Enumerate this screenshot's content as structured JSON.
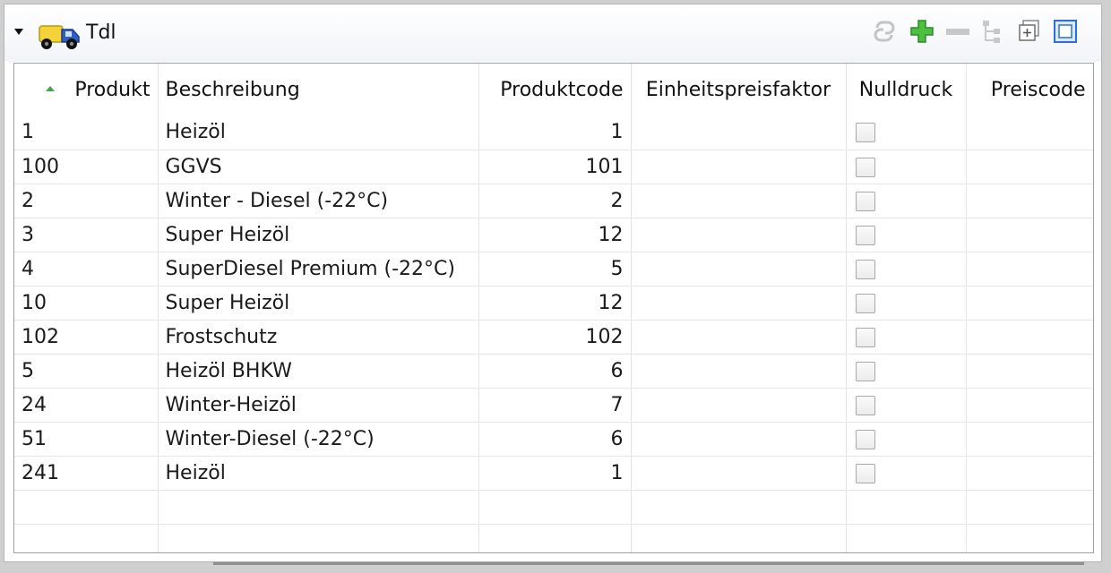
{
  "panel": {
    "title": "Tdl",
    "colors": {
      "sort_arrow": "#49a34c",
      "add_icon": "#3aa83a"
    }
  },
  "toolbar": {
    "icons": [
      "link-icon",
      "add-icon",
      "remove-icon",
      "tree-icon",
      "expand-icon",
      "maximize-icon"
    ]
  },
  "table": {
    "columns": [
      {
        "label": "Produkt",
        "sort": "ascending"
      },
      {
        "label": "Beschreibung"
      },
      {
        "label": "Produktcode"
      },
      {
        "label": "Einheitspreisfaktor"
      },
      {
        "label": "Nulldruck"
      },
      {
        "label": "Preiscode"
      }
    ],
    "rows": [
      {
        "produkt": "1",
        "beschreibung": "Heizöl",
        "produktcode": "1",
        "einheitspreisfaktor": "",
        "nulldruck": false,
        "preiscode": ""
      },
      {
        "produkt": "100",
        "beschreibung": "GGVS",
        "produktcode": "101",
        "einheitspreisfaktor": "",
        "nulldruck": false,
        "preiscode": ""
      },
      {
        "produkt": "2",
        "beschreibung": "Winter - Diesel (-22°C)",
        "produktcode": "2",
        "einheitspreisfaktor": "",
        "nulldruck": false,
        "preiscode": ""
      },
      {
        "produkt": "3",
        "beschreibung": "Super Heizöl",
        "produktcode": "12",
        "einheitspreisfaktor": "",
        "nulldruck": false,
        "preiscode": ""
      },
      {
        "produkt": "4",
        "beschreibung": "SuperDiesel Premium (-22°C)",
        "produktcode": "5",
        "einheitspreisfaktor": "",
        "nulldruck": false,
        "preiscode": ""
      },
      {
        "produkt": "10",
        "beschreibung": "Super Heizöl",
        "produktcode": "12",
        "einheitspreisfaktor": "",
        "nulldruck": false,
        "preiscode": ""
      },
      {
        "produkt": "102",
        "beschreibung": "Frostschutz",
        "produktcode": "102",
        "einheitspreisfaktor": "",
        "nulldruck": false,
        "preiscode": ""
      },
      {
        "produkt": "5",
        "beschreibung": "Heizöl BHKW",
        "produktcode": "6",
        "einheitspreisfaktor": "",
        "nulldruck": false,
        "preiscode": ""
      },
      {
        "produkt": "24",
        "beschreibung": "Winter-Heizöl",
        "produktcode": "7",
        "einheitspreisfaktor": "",
        "nulldruck": false,
        "preiscode": ""
      },
      {
        "produkt": "51",
        "beschreibung": "Winter-Diesel (-22°C)",
        "produktcode": "6",
        "einheitspreisfaktor": "",
        "nulldruck": false,
        "preiscode": ""
      },
      {
        "produkt": "241",
        "beschreibung": "Heizöl",
        "produktcode": "1",
        "einheitspreisfaktor": "",
        "nulldruck": false,
        "preiscode": ""
      }
    ]
  }
}
